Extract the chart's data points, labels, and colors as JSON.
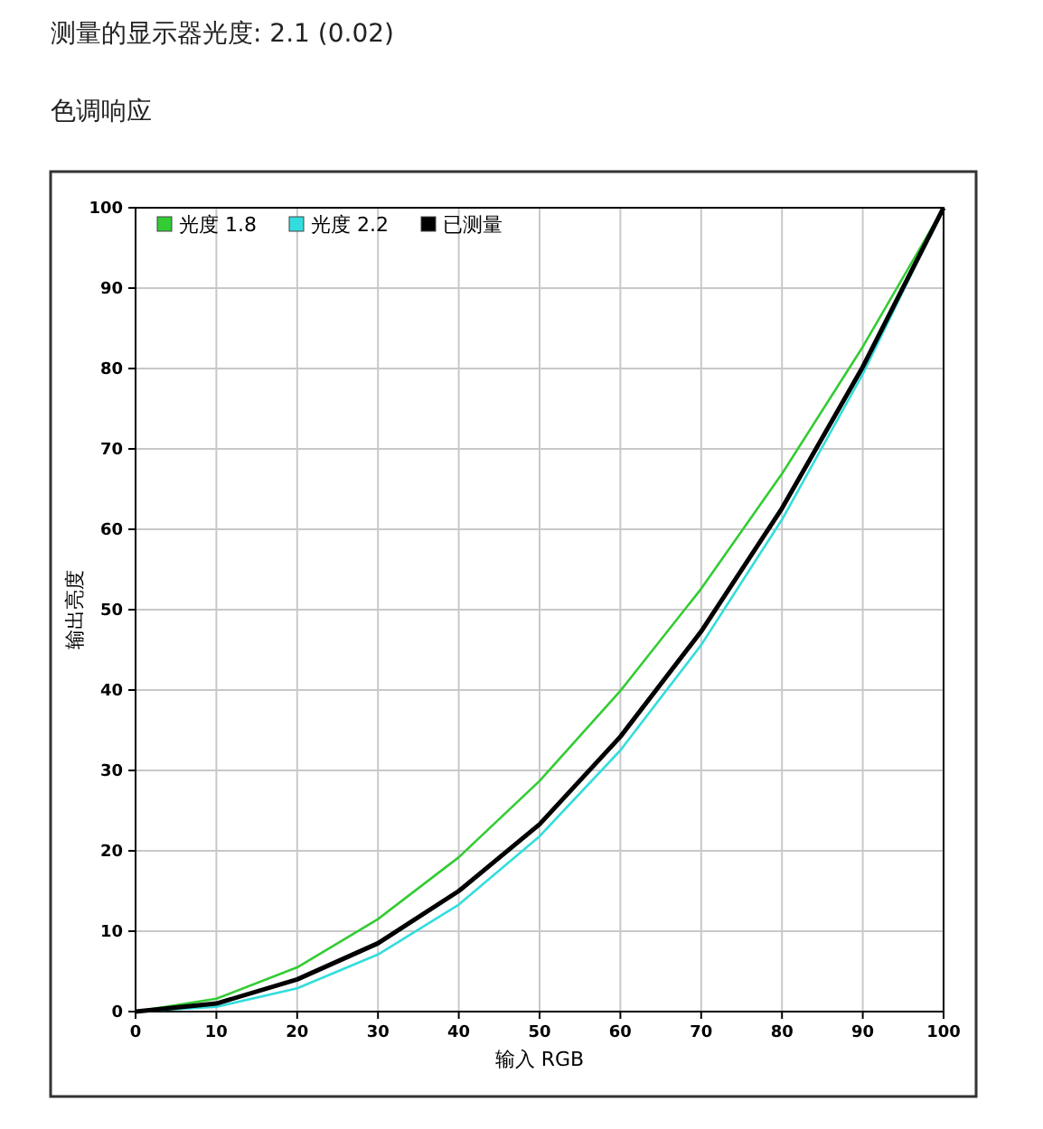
{
  "chart_data": {
    "type": "line",
    "title": "测量的显示器光度: 2.1 (0.02)",
    "subtitle": "色调响应",
    "xlabel": "输入 RGB",
    "ylabel": "输出亮度",
    "x": [
      0,
      10,
      20,
      30,
      40,
      50,
      60,
      70,
      80,
      90,
      100
    ],
    "series": [
      {
        "name": "光度 1.8",
        "color": "#33cc33",
        "values": [
          0,
          1.6,
          5.5,
          11.5,
          19.2,
          28.7,
          39.9,
          52.6,
          66.9,
          82.7,
          100
        ]
      },
      {
        "name": "光度 2.2",
        "color": "#33dddd",
        "values": [
          0,
          0.6,
          2.9,
          7.1,
          13.3,
          21.8,
          32.5,
          45.6,
          61.2,
          79.3,
          100
        ]
      },
      {
        "name": "已测量",
        "color": "#000000",
        "values": [
          0,
          1.0,
          4.0,
          8.5,
          15.0,
          23.3,
          34.2,
          47.3,
          62.6,
          80.2,
          100
        ]
      }
    ],
    "xlim": [
      0,
      100
    ],
    "ylim": [
      0,
      100
    ],
    "xticks": [
      0,
      10,
      20,
      30,
      40,
      50,
      60,
      70,
      80,
      90,
      100
    ],
    "yticks": [
      0,
      10,
      20,
      30,
      40,
      50,
      60,
      70,
      80,
      90,
      100
    ],
    "grid": true,
    "legend": "top left",
    "marker": "none",
    "line_style": "solid"
  }
}
